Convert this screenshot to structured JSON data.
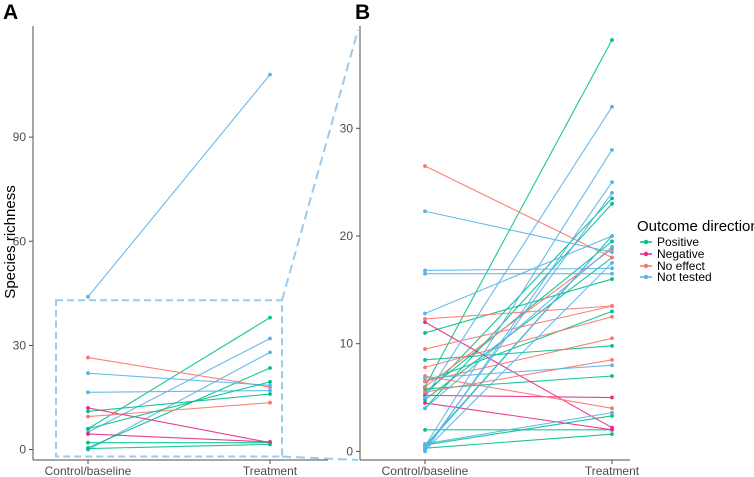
{
  "chart_data": [
    {
      "panel": "A",
      "type": "line",
      "ylabel": "Species richness",
      "xlabel": "",
      "categories": [
        "Control/baseline",
        "Treatment"
      ],
      "ylim": [
        -3,
        122
      ],
      "yticks": [
        0,
        30,
        60,
        90
      ],
      "grid": false,
      "zoom_box": {
        "ylim": [
          -2,
          43
        ]
      },
      "series": [
        {
          "outcome": "Not tested",
          "values": [
            44,
            108
          ]
        },
        {
          "outcome": "Positive",
          "values": [
            6,
            38
          ]
        },
        {
          "outcome": "Not tested",
          "values": [
            5,
            32
          ]
        },
        {
          "outcome": "Not tested",
          "values": [
            0,
            28
          ]
        },
        {
          "outcome": "Positive",
          "values": [
            0.5,
            23.5
          ]
        },
        {
          "outcome": "No effect",
          "values": [
            26.5,
            18
          ]
        },
        {
          "outcome": "Not tested",
          "values": [
            22,
            18.5
          ]
        },
        {
          "outcome": "Not tested",
          "values": [
            16.5,
            17
          ]
        },
        {
          "outcome": "Positive",
          "values": [
            11,
            16
          ]
        },
        {
          "outcome": "Negative",
          "values": [
            12,
            2
          ]
        },
        {
          "outcome": "No effect",
          "values": [
            9.5,
            13.5
          ]
        },
        {
          "outcome": "Positive",
          "values": [
            2,
            2
          ]
        },
        {
          "outcome": "Negative",
          "values": [
            4.5,
            2.2
          ]
        },
        {
          "outcome": "Positive",
          "values": [
            0.3,
            1.5
          ]
        },
        {
          "outcome": "Positive",
          "values": [
            6,
            19.5
          ]
        }
      ]
    },
    {
      "panel": "B",
      "type": "line",
      "ylabel": "",
      "xlabel": "",
      "categories": [
        "Control/baseline",
        "Treatment"
      ],
      "ylim": [
        -0.8,
        39.5
      ],
      "yticks": [
        0,
        10,
        20,
        30
      ],
      "grid": false,
      "series": [
        {
          "outcome": "Positive",
          "values": [
            6,
            38.2
          ]
        },
        {
          "outcome": "Positive",
          "values": [
            5.2,
            23.5
          ]
        },
        {
          "outcome": "Positive",
          "values": [
            5.5,
            19.5
          ]
        },
        {
          "outcome": "Positive",
          "values": [
            11,
            16
          ]
        },
        {
          "outcome": "Positive",
          "values": [
            4,
            23
          ]
        },
        {
          "outcome": "Positive",
          "values": [
            0.5,
            20
          ]
        },
        {
          "outcome": "Positive",
          "values": [
            6.5,
            13
          ]
        },
        {
          "outcome": "Positive",
          "values": [
            8.5,
            9.8
          ]
        },
        {
          "outcome": "Positive",
          "values": [
            2,
            2
          ]
        },
        {
          "outcome": "Positive",
          "values": [
            0.6,
            3.3
          ]
        },
        {
          "outcome": "Positive",
          "values": [
            0.3,
            1.6
          ]
        },
        {
          "outcome": "Positive",
          "values": [
            5.8,
            7
          ]
        },
        {
          "outcome": "Positive",
          "values": [
            4.8,
            18
          ]
        },
        {
          "outcome": "Negative",
          "values": [
            12,
            2.2
          ]
        },
        {
          "outcome": "Negative",
          "values": [
            4.5,
            2
          ]
        },
        {
          "outcome": "Negative",
          "values": [
            5.2,
            5
          ]
        },
        {
          "outcome": "No effect",
          "values": [
            26.5,
            18
          ]
        },
        {
          "outcome": "No effect",
          "values": [
            12.3,
            13.5
          ]
        },
        {
          "outcome": "No effect",
          "values": [
            9.5,
            13.5
          ]
        },
        {
          "outcome": "No effect",
          "values": [
            7.8,
            12.5
          ]
        },
        {
          "outcome": "No effect",
          "values": [
            6.5,
            10.5
          ]
        },
        {
          "outcome": "No effect",
          "values": [
            5.5,
            8.5
          ]
        },
        {
          "outcome": "No effect",
          "values": [
            7,
            4
          ]
        },
        {
          "outcome": "No effect",
          "values": [
            6,
            18.8
          ]
        },
        {
          "outcome": "Not tested",
          "values": [
            22.3,
            18.5
          ]
        },
        {
          "outcome": "Not tested",
          "values": [
            16.8,
            17
          ]
        },
        {
          "outcome": "Not tested",
          "values": [
            16.5,
            16.5
          ]
        },
        {
          "outcome": "Not tested",
          "values": [
            5,
            32
          ]
        },
        {
          "outcome": "Not tested",
          "values": [
            0.5,
            28
          ]
        },
        {
          "outcome": "Not tested",
          "values": [
            0,
            25
          ]
        },
        {
          "outcome": "Not tested",
          "values": [
            0.2,
            24
          ]
        },
        {
          "outcome": "Not tested",
          "values": [
            12.8,
            20
          ]
        },
        {
          "outcome": "Not tested",
          "values": [
            0.4,
            20
          ]
        },
        {
          "outcome": "Not tested",
          "values": [
            4,
            19
          ]
        },
        {
          "outcome": "Not tested",
          "values": [
            0.1,
            17.5
          ]
        },
        {
          "outcome": "Not tested",
          "values": [
            6.8,
            8
          ]
        },
        {
          "outcome": "Not tested",
          "values": [
            0.7,
            3.6
          ]
        }
      ]
    }
  ],
  "legend": {
    "title": "Outcome direction",
    "placement": "right",
    "items": [
      {
        "label": "Positive",
        "color": "#00C08B"
      },
      {
        "label": "Negative",
        "color": "#E7298A"
      },
      {
        "label": "No effect",
        "color": "#F8766D"
      },
      {
        "label": "Not tested",
        "color": "#56B4E9"
      }
    ]
  },
  "zoom_connector_color": "#9ECAE9",
  "axis_color": "#4d4d4d"
}
